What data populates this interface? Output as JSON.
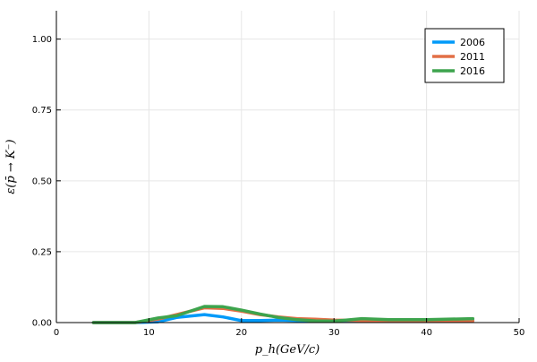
{
  "chart_data": {
    "type": "line",
    "xlabel": "p_h(GeV/c)",
    "ylabel": "ε(p̄ → K⁻)",
    "xlim": [
      0,
      50
    ],
    "ylim": [
      0,
      1.1
    ],
    "x_ticks": [
      0,
      10,
      20,
      30,
      40,
      50
    ],
    "x_tick_labels": [
      "0",
      "10",
      "20",
      "30",
      "40",
      "50"
    ],
    "y_ticks": [
      0,
      0.25,
      0.5,
      0.75,
      1.0
    ],
    "y_tick_labels": [
      "0.00",
      "0.25",
      "0.50",
      "0.75",
      "1.00"
    ],
    "grid": true,
    "legend_position": "top-right",
    "series": [
      {
        "name": "2006",
        "color": "#009af9",
        "x": [
          4,
          8.5,
          11,
          13,
          16,
          18,
          20,
          22,
          24,
          26,
          28,
          30,
          33,
          36,
          40,
          45
        ],
        "y": [
          0,
          0,
          0.003,
          0.018,
          0.028,
          0.02,
          0.007,
          0.007,
          0.009,
          0.007,
          0.005,
          0.004,
          0.008,
          0.006,
          0.006,
          0.008
        ]
      },
      {
        "name": "2011",
        "color": "#e26f46",
        "x": [
          4,
          8.5,
          11,
          13,
          16,
          18,
          20,
          22,
          24,
          26,
          28,
          30,
          33,
          36,
          40,
          45
        ],
        "y": [
          0,
          0,
          0.012,
          0.028,
          0.052,
          0.05,
          0.04,
          0.028,
          0.02,
          0.014,
          0.012,
          0.009,
          0.007,
          0.006,
          0.006,
          0.006
        ]
      },
      {
        "name": "2016",
        "color": "#3da44d",
        "x": [
          4,
          8.5,
          11,
          13,
          16,
          18,
          20,
          22,
          24,
          26,
          28,
          30,
          33,
          36,
          40,
          45
        ],
        "y": [
          0,
          0,
          0.016,
          0.024,
          0.057,
          0.056,
          0.044,
          0.03,
          0.018,
          0.01,
          0.006,
          0.005,
          0.014,
          0.01,
          0.01,
          0.014
        ]
      }
    ]
  }
}
